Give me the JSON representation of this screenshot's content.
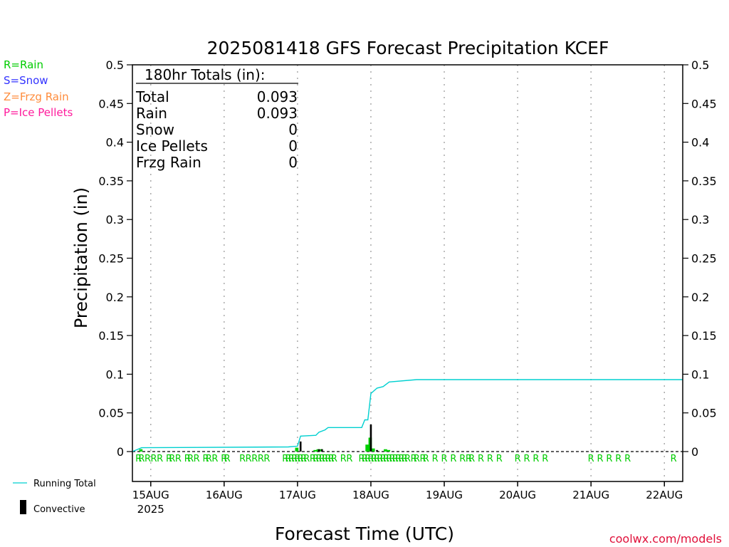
{
  "chart_data": {
    "type": "bar",
    "title": "2025081418 GFS Forecast Precipitation KCEF",
    "xlabel": "Forecast Time (UTC)",
    "ylabel": "Precipitation (in)",
    "ylim": [
      0,
      0.5
    ],
    "yticks": [
      "0",
      "0.05",
      "0.1",
      "0.15",
      "0.2",
      "0.25",
      "0.3",
      "0.35",
      "0.4",
      "0.45",
      "0.5"
    ],
    "x_start": "2025-08-14 18:00",
    "x_end": "2025-08-22 06:00",
    "day_ticks": [
      {
        "label": "15AUG",
        "sub": "2025",
        "t": "2025-08-15 00:00"
      },
      {
        "label": "16AUG",
        "sub": "",
        "t": "2025-08-16 00:00"
      },
      {
        "label": "17AUG",
        "sub": "",
        "t": "2025-08-17 00:00"
      },
      {
        "label": "18AUG",
        "sub": "",
        "t": "2025-08-18 00:00"
      },
      {
        "label": "19AUG",
        "sub": "",
        "t": "2025-08-19 00:00"
      },
      {
        "label": "20AUG",
        "sub": "",
        "t": "2025-08-20 00:00"
      },
      {
        "label": "21AUG",
        "sub": "",
        "t": "2025-08-21 00:00"
      },
      {
        "label": "22AUG",
        "sub": "",
        "t": "2025-08-22 00:00"
      }
    ],
    "grid": "vertical dotted",
    "series": [
      {
        "name": "Running Total",
        "type": "line",
        "color": "#00d0d0",
        "points": [
          [
            "2025-08-14 18:00",
            0.0
          ],
          [
            "2025-08-14 21:00",
            0.005
          ],
          [
            "2025-08-16 21:00",
            0.006
          ],
          [
            "2025-08-17 00:00",
            0.007
          ],
          [
            "2025-08-17 01:00",
            0.02
          ],
          [
            "2025-08-17 06:00",
            0.021
          ],
          [
            "2025-08-17 07:00",
            0.025
          ],
          [
            "2025-08-17 09:00",
            0.028
          ],
          [
            "2025-08-17 10:00",
            0.031
          ],
          [
            "2025-08-17 21:00",
            0.031
          ],
          [
            "2025-08-17 22:00",
            0.041
          ],
          [
            "2025-08-17 23:00",
            0.041
          ],
          [
            "2025-08-18 00:00",
            0.075
          ],
          [
            "2025-08-18 02:00",
            0.082
          ],
          [
            "2025-08-18 04:00",
            0.084
          ],
          [
            "2025-08-18 06:00",
            0.09
          ],
          [
            "2025-08-18 15:00",
            0.093
          ],
          [
            "2025-08-22 06:00",
            0.093
          ]
        ]
      },
      {
        "name": "Rain",
        "type": "bar",
        "color": "#00d000",
        "points": [
          [
            "2025-08-14 21:00",
            0.003
          ],
          [
            "2025-08-17 00:00",
            0.005
          ],
          [
            "2025-08-17 06:00",
            0.002
          ],
          [
            "2025-08-17 07:00",
            0.003
          ],
          [
            "2025-08-17 08:00",
            0.003
          ],
          [
            "2025-08-17 23:00",
            0.009
          ],
          [
            "2025-08-18 00:00",
            0.018
          ],
          [
            "2025-08-18 01:00",
            0.004
          ],
          [
            "2025-08-18 05:00",
            0.003
          ],
          [
            "2025-08-18 06:00",
            0.002
          ]
        ]
      },
      {
        "name": "Convective",
        "type": "bar",
        "color": "#000000",
        "points": [
          [
            "2025-08-17 01:00",
            0.013
          ],
          [
            "2025-08-17 07:00",
            0.003
          ],
          [
            "2025-08-17 08:00",
            0.003
          ],
          [
            "2025-08-18 00:00",
            0.035
          ],
          [
            "2025-08-18 02:00",
            0.002
          ]
        ]
      }
    ],
    "precip_type_markers": {
      "label": "R",
      "color": "#00cc00",
      "times": [
        "2025-08-14 20:00",
        "2025-08-14 21:00",
        "2025-08-14 23:00",
        "2025-08-15 01:00",
        "2025-08-15 03:00",
        "2025-08-15 06:00",
        "2025-08-15 07:00",
        "2025-08-15 09:00",
        "2025-08-15 12:00",
        "2025-08-15 13:00",
        "2025-08-15 15:00",
        "2025-08-15 18:00",
        "2025-08-15 19:00",
        "2025-08-15 21:00",
        "2025-08-16 00:00",
        "2025-08-16 01:00",
        "2025-08-16 06:00",
        "2025-08-16 08:00",
        "2025-08-16 10:00",
        "2025-08-16 12:00",
        "2025-08-16 14:00",
        "2025-08-16 20:00",
        "2025-08-16 21:00",
        "2025-08-16 22:00",
        "2025-08-16 23:00",
        "2025-08-17 00:00",
        "2025-08-17 01:00",
        "2025-08-17 02:00",
        "2025-08-17 03:00",
        "2025-08-17 05:00",
        "2025-08-17 06:00",
        "2025-08-17 07:00",
        "2025-08-17 08:00",
        "2025-08-17 09:00",
        "2025-08-17 10:00",
        "2025-08-17 11:00",
        "2025-08-17 12:00",
        "2025-08-17 15:00",
        "2025-08-17 17:00",
        "2025-08-17 21:00",
        "2025-08-17 22:00",
        "2025-08-17 23:00",
        "2025-08-18 00:00",
        "2025-08-18 01:00",
        "2025-08-18 02:00",
        "2025-08-18 03:00",
        "2025-08-18 04:00",
        "2025-08-18 05:00",
        "2025-08-18 06:00",
        "2025-08-18 07:00",
        "2025-08-18 08:00",
        "2025-08-18 09:00",
        "2025-08-18 10:00",
        "2025-08-18 11:00",
        "2025-08-18 12:00",
        "2025-08-18 14:00",
        "2025-08-18 15:00",
        "2025-08-18 17:00",
        "2025-08-18 18:00",
        "2025-08-18 21:00",
        "2025-08-19 00:00",
        "2025-08-19 03:00",
        "2025-08-19 06:00",
        "2025-08-19 08:00",
        "2025-08-19 09:00",
        "2025-08-19 12:00",
        "2025-08-19 15:00",
        "2025-08-19 18:00",
        "2025-08-20 00:00",
        "2025-08-20 03:00",
        "2025-08-20 06:00",
        "2025-08-20 09:00",
        "2025-08-21 00:00",
        "2025-08-21 03:00",
        "2025-08-21 06:00",
        "2025-08-21 09:00",
        "2025-08-21 12:00",
        "2025-08-22 03:00"
      ]
    }
  },
  "totals_box": {
    "title": "180hr Totals (in):",
    "rows": [
      {
        "label": "Total",
        "value": "0.093"
      },
      {
        "label": "Rain",
        "value": "0.093"
      },
      {
        "label": "Snow",
        "value": "0"
      },
      {
        "label": "Ice Pellets",
        "value": "0"
      },
      {
        "label": "Frzg Rain",
        "value": "0"
      }
    ]
  },
  "type_legend": [
    {
      "text": "R=Rain",
      "color": "#00cc00"
    },
    {
      "text": "S=Snow",
      "color": "#3333ff"
    },
    {
      "text": "Z=Frzg Rain",
      "color": "#ff8c3c"
    },
    {
      "text": "P=Ice Pellets",
      "color": "#ff1a9c"
    }
  ],
  "series_legend": {
    "running_total": "Running Total",
    "convective": "Convective"
  },
  "credit": "coolwx.com/models",
  "colors": {
    "running_total": "#00d0d0",
    "rain": "#00d000",
    "convective": "#000000",
    "credit": "#e0103a"
  }
}
